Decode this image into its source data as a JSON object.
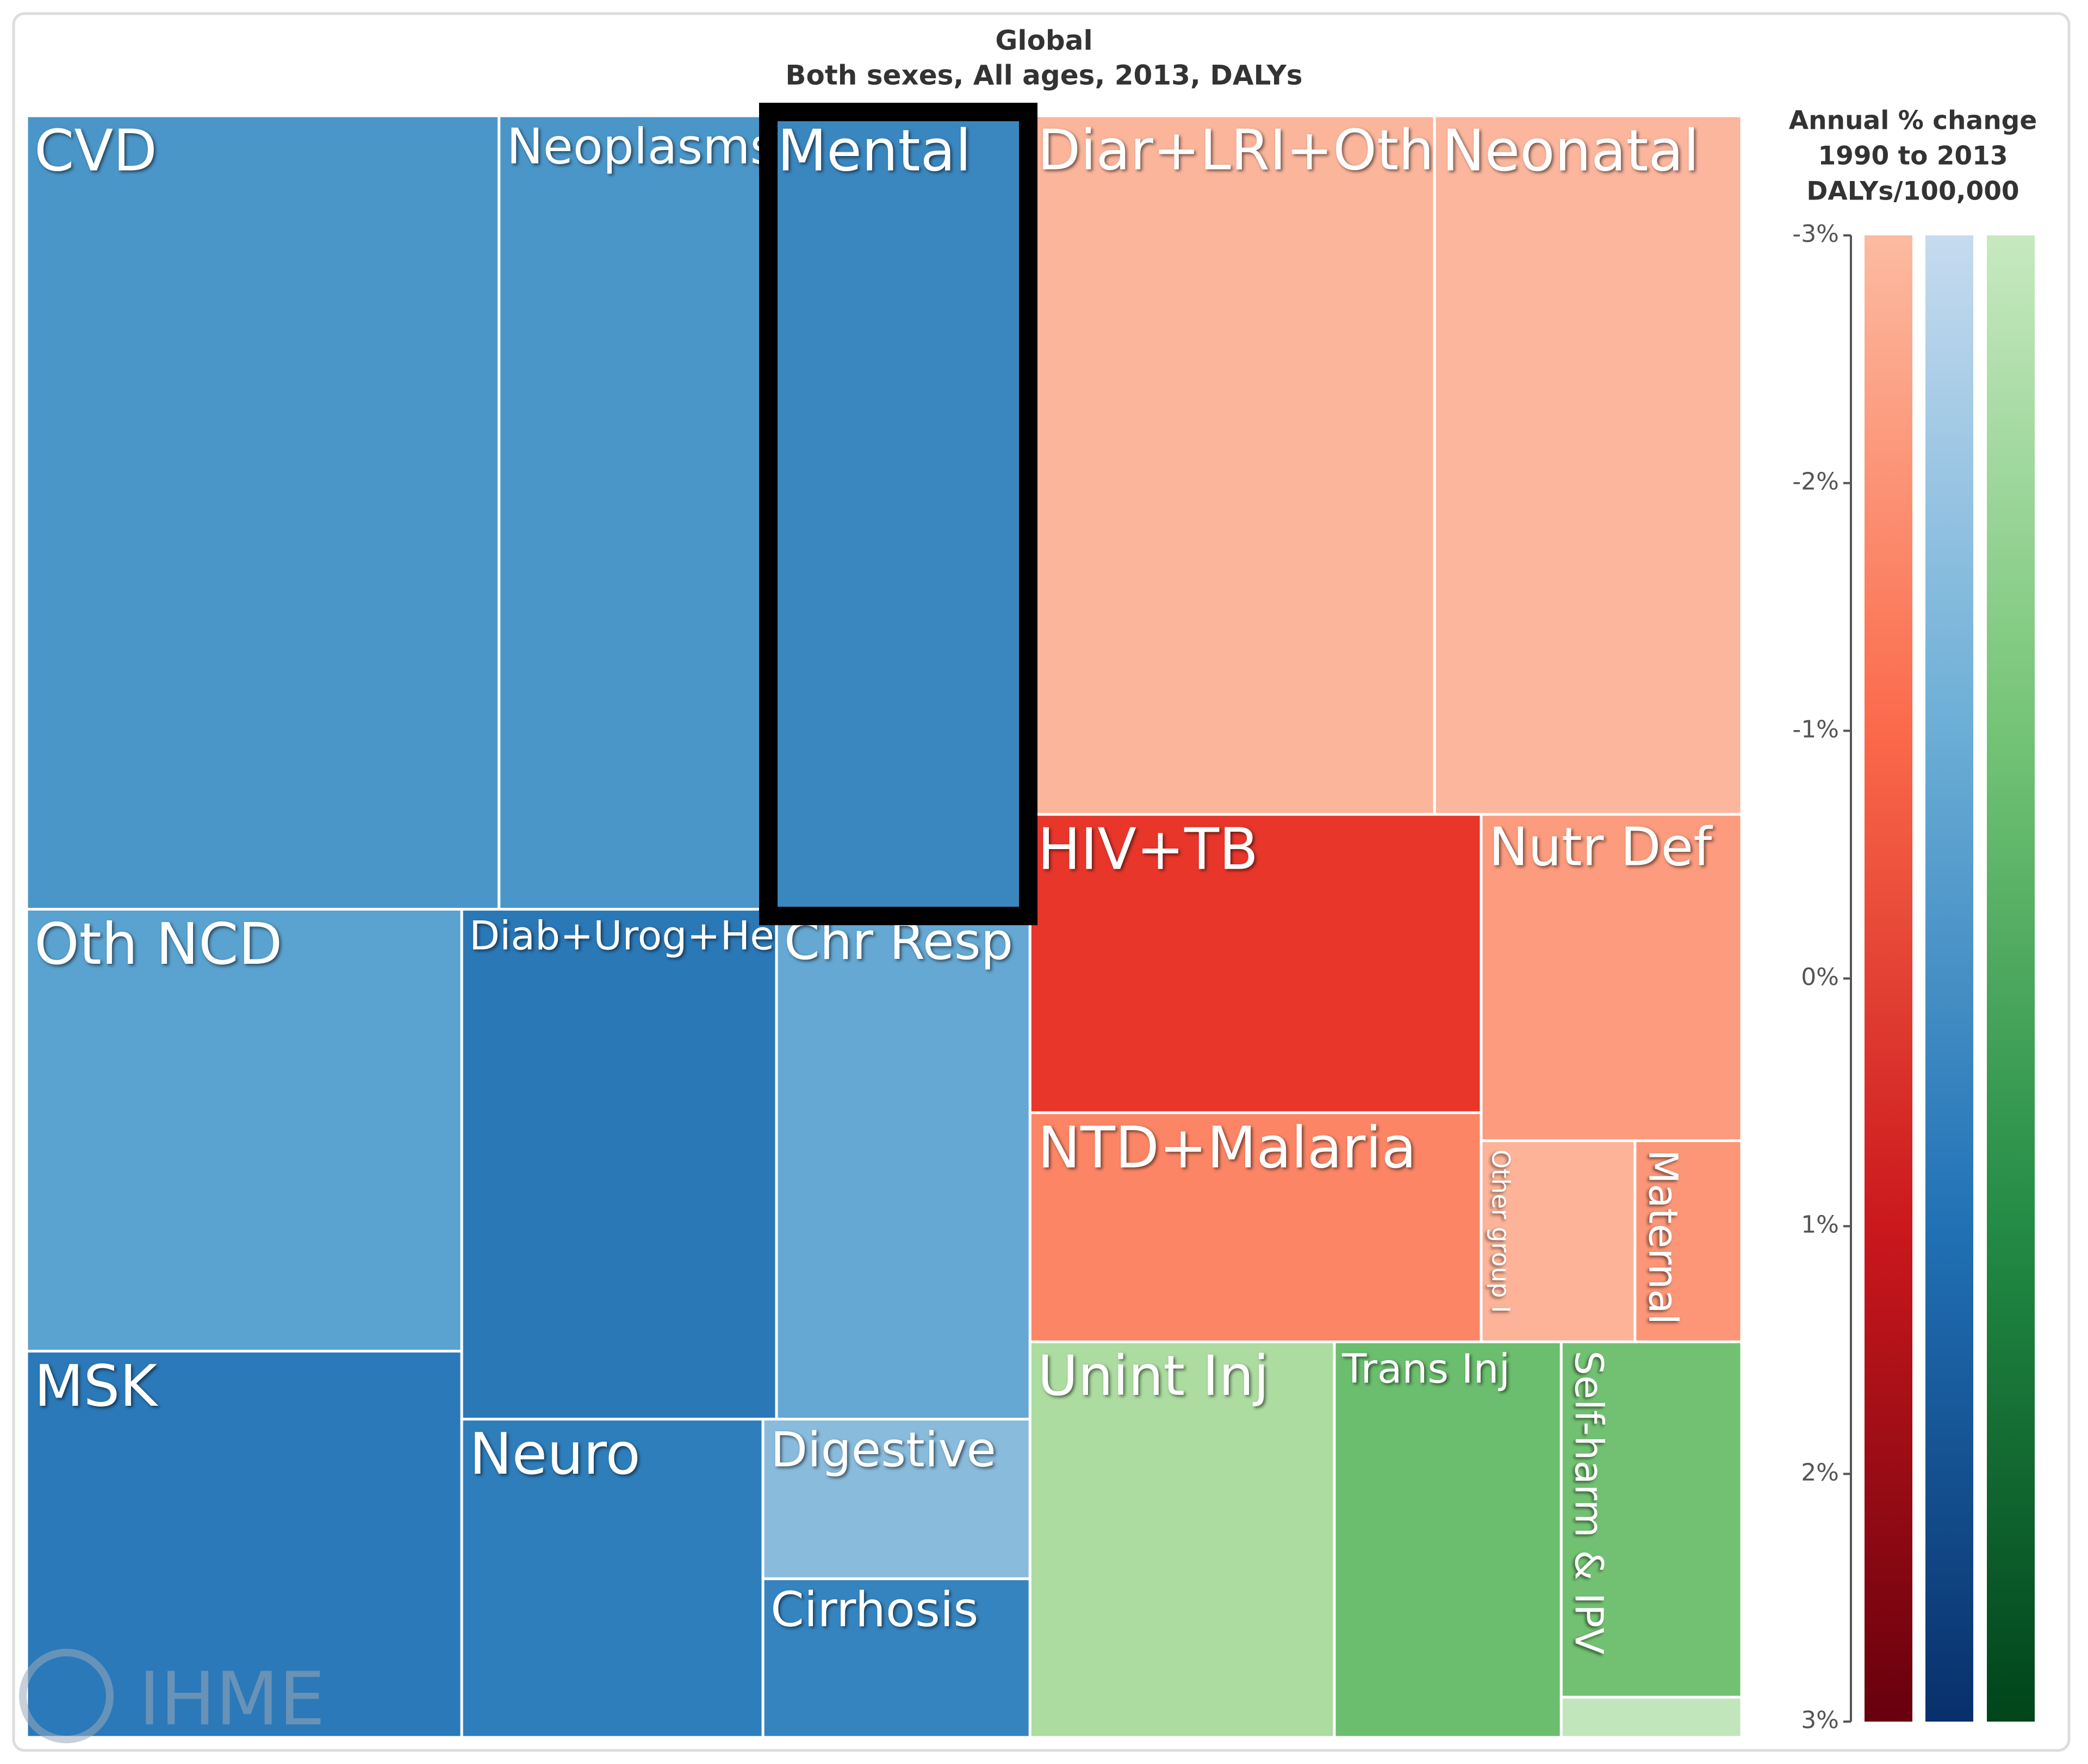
{
  "chart_data": {
    "type": "treemap",
    "title": "Global",
    "subtitle": "Both sexes, All ages, 2013, DALYs",
    "watermark": "IHME",
    "categories": [
      "CVD",
      "Neoplasms",
      "Mental",
      "Oth NCD",
      "MSK",
      "Diab+Urog+Hem",
      "Chr Resp",
      "Neuro",
      "Digestive",
      "Cirrhosis",
      "Diar+LRI+Oth",
      "Neonatal",
      "HIV+TB",
      "NTD+Malaria",
      "Nutr Def",
      "Other group I",
      "Maternal",
      "Unint Inj",
      "Trans Inj",
      "Self-harm & IPV",
      null
    ],
    "values": [
      13.45,
      7.71,
      7.41,
      6.9,
      6.03,
      5.76,
      4.64,
      3.44,
      1.53,
      1.52,
      10.14,
      7.7,
      4.83,
      3.71,
      3.05,
      1.11,
      0.77,
      4.32,
      3.22,
      2.3,
      0.26
    ],
    "colors": [
      "#4a96c9",
      "#4a96c9",
      "#3a87c0",
      "#5aa2cf",
      "#2b79b9",
      "#2b78b7",
      "#65a8d3",
      "#2e7ebc",
      "#89bbdc",
      "#3584c0",
      "#fbb59b",
      "#fbb69d",
      "#e8362b",
      "#fc8565",
      "#fc9b7d",
      "#fcb398",
      "#fc9677",
      "#acdca0",
      "#6bbe6e",
      "#72c172",
      "#c2e6bb"
    ],
    "colorbar": {
      "title": [
        "Annual % change",
        "1990 to 2013",
        "DALYs/100,000"
      ],
      "ylim": [
        -3,
        3
      ],
      "yticks": [
        {
          "value": -3,
          "label": "-3%"
        },
        {
          "value": -2,
          "label": "-2%"
        },
        {
          "value": -1,
          "label": "-1%"
        },
        {
          "value": 0,
          "label": "0%"
        },
        {
          "value": 1,
          "label": "1%"
        },
        {
          "value": 2,
          "label": "2%"
        },
        {
          "value": 3,
          "label": "3%"
        }
      ],
      "gradients": [
        [
          "#fcbba1",
          "#fb6a4a",
          "#cb181d",
          "#67000d"
        ],
        [
          "#c6dbef",
          "#6baed6",
          "#2171b5",
          "#08306b"
        ],
        [
          "#c7e9c0",
          "#74c476",
          "#238b45",
          "#00441b"
        ]
      ]
    }
  }
}
